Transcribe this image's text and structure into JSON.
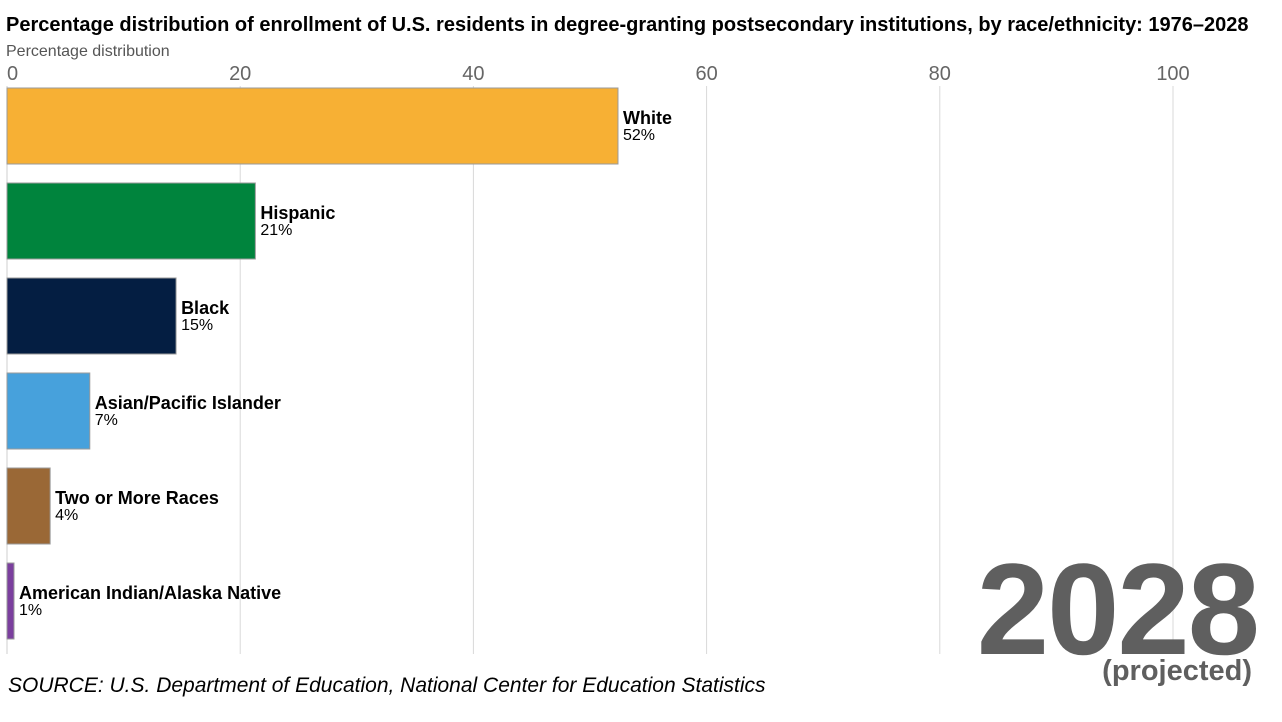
{
  "chart_data": {
    "type": "bar",
    "orientation": "horizontal",
    "title": "Percentage distribution of enrollment of U.S. residents in degree-granting postsecondary institutions, by race/ethnicity: 1976–2028",
    "subtitle": "Percentage distribution",
    "xlim": [
      0,
      105
    ],
    "xticks": [
      0,
      20,
      40,
      60,
      80,
      100
    ],
    "grid": true,
    "categories": [
      "White",
      "Hispanic",
      "Black",
      "Asian/Pacific Islander",
      "Two or More Races",
      "American Indian/Alaska Native"
    ],
    "values": [
      52.4,
      21.3,
      14.5,
      7.1,
      3.7,
      0.6
    ],
    "value_labels": [
      "52%",
      "21%",
      "15%",
      "7%",
      "4%",
      "1%"
    ],
    "colors": [
      "#F7B034",
      "#00843D",
      "#041E42",
      "#47A1DC",
      "#9A6836",
      "#7B3F9E"
    ],
    "year": "2028",
    "year_note": "(projected)",
    "source": "SOURCE: U.S. Department of Education, National Center for Education Statistics"
  }
}
